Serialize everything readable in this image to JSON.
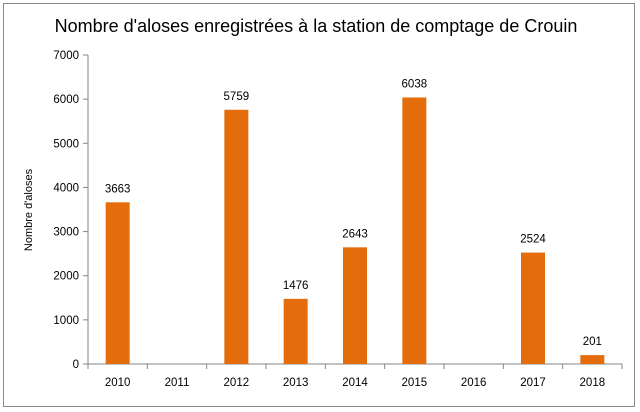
{
  "chart_data": {
    "type": "bar",
    "title": "Nombre d'aloses enregistrées à la station de comptage de Crouin",
    "xlabel": "",
    "ylabel": "Nombre d'aloses",
    "categories": [
      "2010",
      "2011",
      "2012",
      "2013",
      "2014",
      "2015",
      "2016",
      "2017",
      "2018"
    ],
    "values": [
      3663,
      null,
      5759,
      1476,
      2643,
      6038,
      null,
      2524,
      201
    ],
    "data_labels": [
      "3663",
      "",
      "5759",
      "1476",
      "2643",
      "6038",
      "",
      "2524",
      "201"
    ],
    "ylim": [
      0,
      7000
    ],
    "yticks": [
      0,
      1000,
      2000,
      3000,
      4000,
      5000,
      6000,
      7000
    ],
    "grid": false,
    "legend": "none",
    "bar_color": "#E46C0A"
  }
}
